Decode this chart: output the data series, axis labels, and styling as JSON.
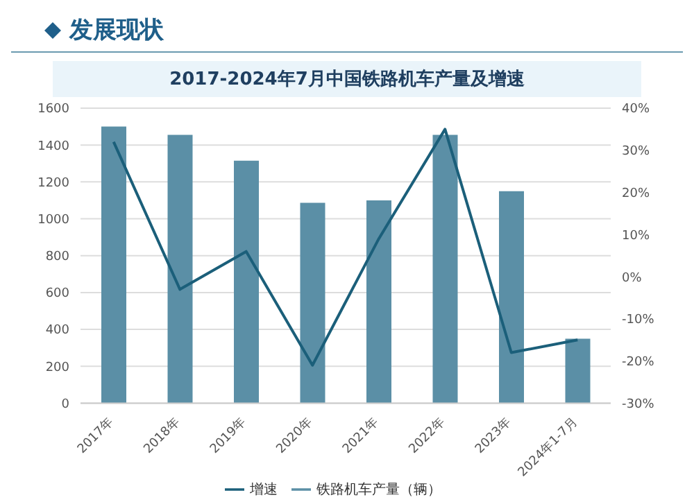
{
  "chart_data": {
    "type": "bar",
    "title": "发展现状",
    "subtitle": "2017-2024年7月中国铁路机车产量及增速",
    "categories": [
      "2017年",
      "2018年",
      "2019年",
      "2020年",
      "2021年",
      "2022年",
      "2023年",
      "2024年1-7月"
    ],
    "series": [
      {
        "name": "铁路机车产量（辆）",
        "color": "#5b8fa6",
        "values": [
          1500,
          1455,
          1315,
          1087,
          1100,
          1455,
          1150,
          350
        ]
      },
      {
        "name": "增速",
        "type": "line",
        "axis": "y2",
        "color": "#1b5f7a",
        "values": [
          32,
          -3,
          6,
          -21,
          9,
          35,
          -18,
          -15
        ]
      }
    ],
    "ylim": [
      0,
      1600
    ],
    "yticks": [
      0,
      200,
      400,
      600,
      800,
      1000,
      1200,
      1400,
      1600
    ],
    "y2lim": [
      -30,
      40
    ],
    "y2ticks": [
      {
        "value": -30,
        "label": "-30%"
      },
      {
        "value": -20,
        "label": "-20%"
      },
      {
        "value": -10,
        "label": "-10%"
      },
      {
        "value": 0,
        "label": "0%"
      },
      {
        "value": 10,
        "label": "10%"
      },
      {
        "value": 20,
        "label": "20%"
      },
      {
        "value": 30,
        "label": "30%"
      },
      {
        "value": 40,
        "label": "40%"
      }
    ],
    "grid": "y",
    "legend": "bottom",
    "marker": "none",
    "line_style": "solid"
  }
}
